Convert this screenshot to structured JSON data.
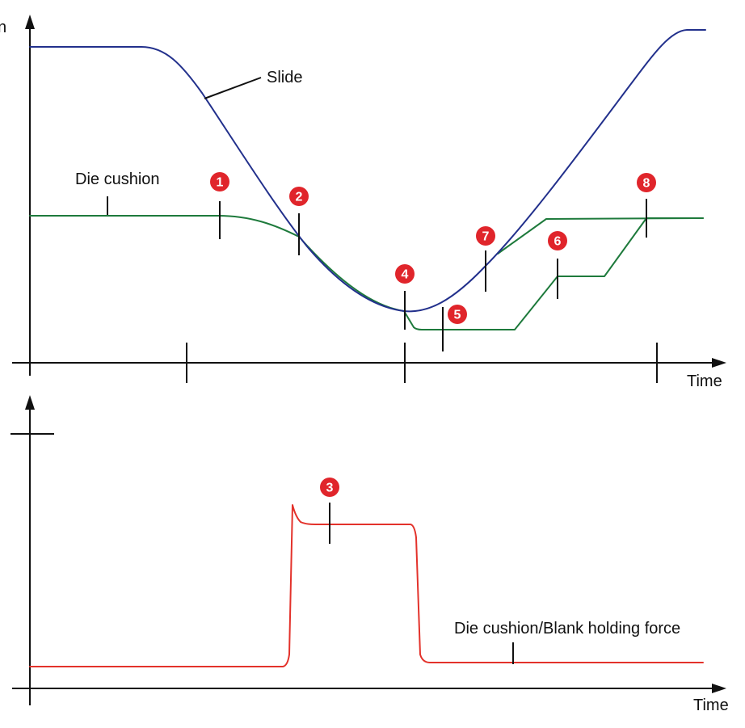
{
  "top_plot": {
    "y_axis_label_fragment": "n",
    "x_axis_label": "Time",
    "slide_label": "Slide",
    "die_cushion_label": "Die cushion"
  },
  "bottom_plot": {
    "x_axis_label": "Time",
    "force_label": "Die cushion/Blank holding force"
  },
  "markers": [
    {
      "label": "1"
    },
    {
      "label": "2"
    },
    {
      "label": "3"
    },
    {
      "label": "4"
    },
    {
      "label": "5"
    },
    {
      "label": "6"
    },
    {
      "label": "7"
    },
    {
      "label": "8"
    }
  ],
  "colors": {
    "slide": "#22308c",
    "die_cushion": "#1e7a3c",
    "force": "#e3322b",
    "marker": "#e0252b"
  }
}
